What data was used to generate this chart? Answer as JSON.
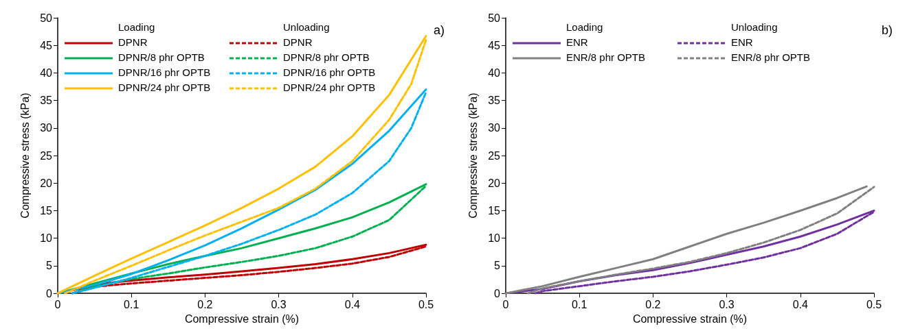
{
  "chart_data": [
    {
      "type": "line",
      "title": "a)",
      "xlabel": "Compressive strain (%)",
      "ylabel": "Compressive stress (kPa)",
      "xlim": [
        0,
        0.5
      ],
      "xticks": [
        0,
        0.1,
        0.2,
        0.3,
        0.4,
        0.5
      ],
      "ylim": [
        0,
        50
      ],
      "yticks": [
        0,
        5,
        10,
        15,
        20,
        25,
        30,
        35,
        40,
        45,
        50
      ],
      "grid": false,
      "legend": "top left",
      "marker": "none",
      "annotations": [
        "Loading",
        "Unloading"
      ],
      "series": [
        {
          "name": "DPNR",
          "color": "#c00000",
          "line_style": "solid",
          "x": [
            0,
            0.07,
            0.1,
            0.15,
            0.2,
            0.25,
            0.3,
            0.35,
            0.4,
            0.45,
            0.5
          ],
          "values": [
            0,
            1.9,
            2.3,
            2.9,
            3.4,
            4,
            4.6,
            5.3,
            6.2,
            7.3,
            8.8
          ]
        },
        {
          "name": "DPNR/8 phr OPTB",
          "color": "#00b050",
          "line_style": "solid",
          "x": [
            0,
            0.05,
            0.1,
            0.15,
            0.2,
            0.25,
            0.3,
            0.35,
            0.4,
            0.45,
            0.5
          ],
          "values": [
            0,
            1.8,
            3.6,
            5.3,
            6.8,
            8.2,
            10,
            11.8,
            13.8,
            16.5,
            19.8
          ]
        },
        {
          "name": "DPNR/16 phr OPTB",
          "color": "#00b0f0",
          "line_style": "solid",
          "x": [
            0,
            0.05,
            0.1,
            0.15,
            0.2,
            0.25,
            0.3,
            0.35,
            0.4,
            0.45,
            0.5
          ],
          "values": [
            0,
            1.5,
            3.5,
            6,
            8.7,
            11.8,
            15.2,
            18.8,
            23.5,
            29.5,
            37
          ]
        },
        {
          "name": "DPNR/24 phr OPTB",
          "color": "#ffc000",
          "line_style": "solid",
          "x": [
            0,
            0.05,
            0.1,
            0.15,
            0.2,
            0.25,
            0.3,
            0.35,
            0.4,
            0.45,
            0.5
          ],
          "values": [
            0,
            3.2,
            6.3,
            9.3,
            12.3,
            15.5,
            19,
            23,
            28.5,
            36,
            46.7
          ]
        },
        {
          "name": "DPNR",
          "color": "#c00000",
          "line_style": "dashed",
          "x": [
            0.02,
            0.05,
            0.1,
            0.15,
            0.2,
            0.25,
            0.3,
            0.35,
            0.4,
            0.45,
            0.5
          ],
          "values": [
            0,
            1.2,
            1.8,
            2.3,
            2.8,
            3.3,
            3.9,
            4.6,
            5.4,
            6.6,
            8.5
          ]
        },
        {
          "name": "DPNR/8 phr OPTB",
          "color": "#00b050",
          "line_style": "dashed",
          "x": [
            0.02,
            0.05,
            0.1,
            0.15,
            0.2,
            0.25,
            0.3,
            0.35,
            0.4,
            0.45,
            0.5
          ],
          "values": [
            0,
            1.2,
            2.6,
            3.6,
            4.7,
            5.7,
            6.8,
            8.2,
            10.3,
            13.3,
            19.5
          ]
        },
        {
          "name": "DPNR/16 phr OPTB",
          "color": "#00b0f0",
          "line_style": "dashed",
          "x": [
            0.02,
            0.05,
            0.1,
            0.15,
            0.2,
            0.25,
            0.3,
            0.35,
            0.4,
            0.45,
            0.48,
            0.5
          ],
          "values": [
            0,
            1,
            2.8,
            4.8,
            6.8,
            9,
            11.5,
            14.3,
            18.2,
            24,
            30,
            36.5
          ]
        },
        {
          "name": "DPNR/24 phr OPTB",
          "color": "#ffc000",
          "line_style": "dashed",
          "x": [
            0.01,
            0.05,
            0.1,
            0.15,
            0.2,
            0.25,
            0.3,
            0.35,
            0.4,
            0.45,
            0.48,
            0.5
          ],
          "values": [
            0,
            2.3,
            5,
            7.8,
            10.5,
            13,
            15.5,
            19,
            24,
            31.5,
            38,
            46
          ]
        }
      ]
    },
    {
      "type": "line",
      "title": "b)",
      "xlabel": "Compressive strain (%)",
      "ylabel": "Compressive stress (kPa)",
      "xlim": [
        0,
        0.5
      ],
      "xticks": [
        0,
        0.1,
        0.2,
        0.3,
        0.4,
        0.5
      ],
      "ylim": [
        0,
        50
      ],
      "yticks": [
        0,
        5,
        10,
        15,
        20,
        25,
        30,
        35,
        40,
        45,
        50
      ],
      "grid": false,
      "legend": "top left",
      "marker": "none",
      "annotations": [
        "Loading",
        "Unloading"
      ],
      "series": [
        {
          "name": "ENR",
          "color": "#7030a0",
          "line_style": "solid",
          "x": [
            0,
            0.05,
            0.1,
            0.15,
            0.2,
            0.25,
            0.3,
            0.35,
            0.4,
            0.45,
            0.5
          ],
          "values": [
            0,
            0.8,
            2.2,
            3.3,
            4.2,
            5.5,
            7,
            8.5,
            10.3,
            12.5,
            15
          ]
        },
        {
          "name": "ENR/8 phr OPTB",
          "color": "#808080",
          "line_style": "solid",
          "x": [
            0,
            0.05,
            0.1,
            0.15,
            0.2,
            0.25,
            0.3,
            0.35,
            0.4,
            0.45,
            0.49
          ],
          "values": [
            0,
            1.3,
            3,
            4.6,
            6.2,
            8.5,
            10.8,
            12.8,
            15,
            17.3,
            19.4
          ]
        },
        {
          "name": "ENR",
          "color": "#7030a0",
          "line_style": "dashed",
          "x": [
            0.04,
            0.05,
            0.1,
            0.15,
            0.2,
            0.25,
            0.3,
            0.35,
            0.4,
            0.45,
            0.5
          ],
          "values": [
            0,
            0.4,
            1.3,
            2.2,
            3,
            4,
            5.2,
            6.5,
            8.2,
            10.8,
            14.8
          ]
        },
        {
          "name": "ENR/8 phr OPTB",
          "color": "#808080",
          "line_style": "dashed",
          "x": [
            0.03,
            0.05,
            0.1,
            0.15,
            0.2,
            0.25,
            0.3,
            0.35,
            0.4,
            0.45,
            0.5
          ],
          "values": [
            0,
            0.9,
            2.2,
            3.4,
            4.5,
            5.7,
            7.3,
            9.2,
            11.5,
            14.5,
            19.3
          ]
        }
      ]
    }
  ]
}
